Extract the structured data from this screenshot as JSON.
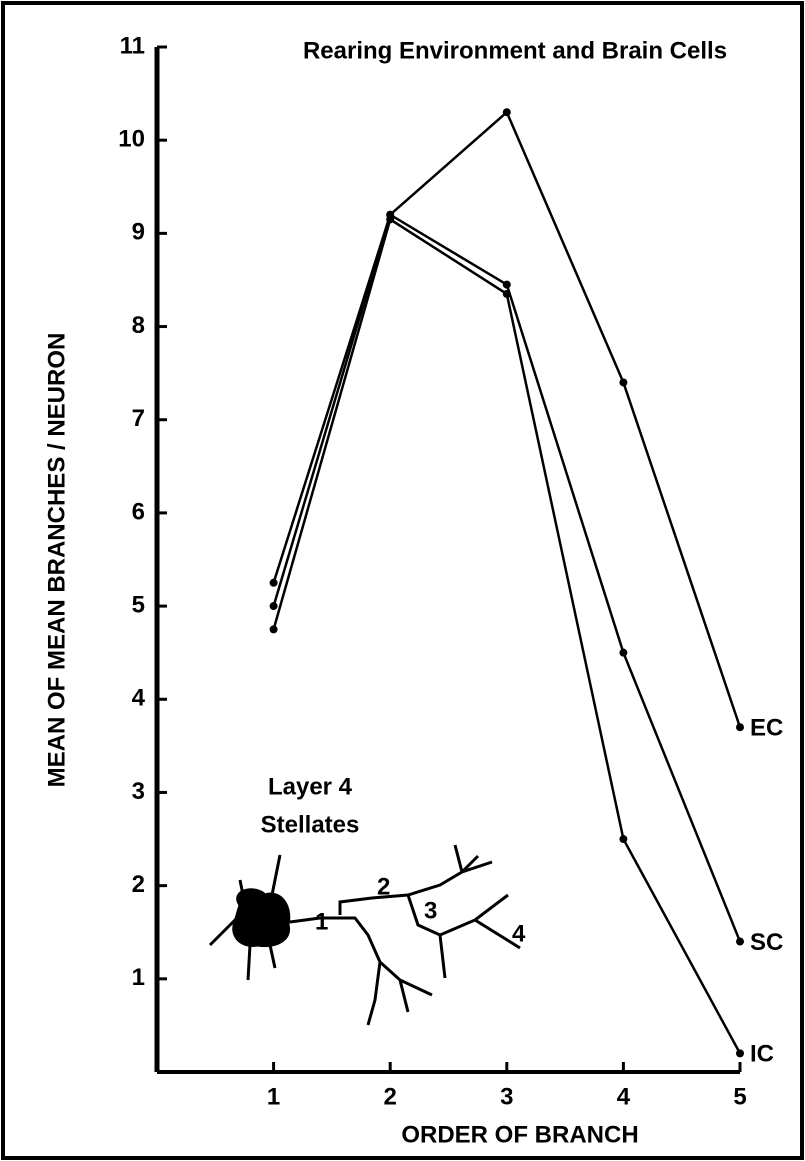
{
  "chart_data": {
    "type": "line",
    "title": "Rearing Environment and Brain Cells",
    "xlabel": "ORDER OF BRANCH",
    "ylabel": "MEAN OF MEAN BRANCHES / NEURON",
    "annotation": [
      "Layer 4",
      "Stellates"
    ],
    "diagram_labels": [
      "1",
      "2",
      "3",
      "4"
    ],
    "x": [
      1,
      2,
      3,
      4,
      5
    ],
    "series": [
      {
        "name": "EC",
        "color": "#000000",
        "values": [
          5.25,
          9.2,
          10.3,
          7.4,
          3.7
        ]
      },
      {
        "name": "SC",
        "color": "#000000",
        "values": [
          5.0,
          9.2,
          8.45,
          4.5,
          1.4
        ]
      },
      {
        "name": "IC",
        "color": "#000000",
        "values": [
          4.75,
          9.15,
          8.35,
          2.5,
          0.2
        ]
      }
    ],
    "xlim": [
      0,
      5
    ],
    "xticks": [
      1,
      2,
      3,
      4,
      5
    ],
    "ylim": [
      0,
      11
    ],
    "yticks": [
      1,
      2,
      3,
      4,
      5,
      6,
      7,
      8,
      9,
      10,
      11
    ]
  }
}
